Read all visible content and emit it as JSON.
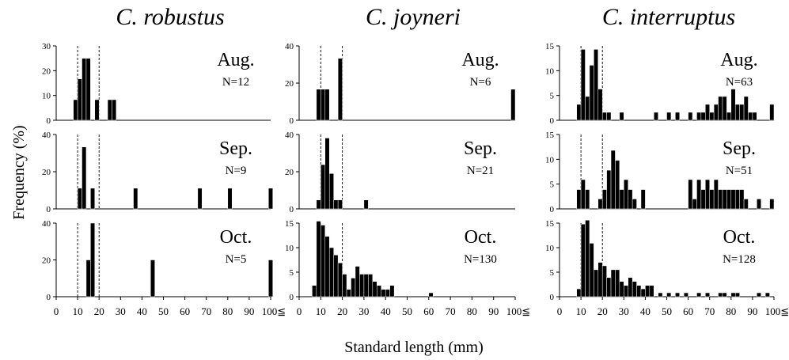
{
  "figure": {
    "ylabel": "Frequency (%)",
    "xlabel": "Standard length (mm)",
    "x_ticks": [
      "0",
      "10",
      "20",
      "30",
      "40",
      "50",
      "60",
      "70",
      "80",
      "90",
      "100≦"
    ],
    "species": [
      "C. robustus",
      "C. joyneri",
      "C. interruptus"
    ],
    "months": [
      "Aug.",
      "Sep.",
      "Oct."
    ]
  },
  "chart_data": [
    {
      "type": "bar",
      "species": "C. robustus",
      "month": "Aug.",
      "n_label": "N=12",
      "ylim": [
        0,
        30
      ],
      "yticks": [
        "0",
        "10",
        "20",
        "30"
      ],
      "xlim": [
        0,
        100
      ],
      "x": [
        9,
        11,
        13,
        15,
        19,
        25,
        27
      ],
      "values": [
        8.3,
        16.7,
        25,
        25,
        8.3,
        8.3,
        8.3
      ]
    },
    {
      "type": "bar",
      "species": "C. robustus",
      "month": "Sep.",
      "n_label": "N=9",
      "ylim": [
        0,
        40
      ],
      "yticks": [
        "0",
        "20",
        "40"
      ],
      "xlim": [
        0,
        100
      ],
      "x": [
        11,
        13,
        17,
        37,
        67,
        81,
        100
      ],
      "values": [
        11.1,
        33.3,
        11.1,
        11.1,
        11.1,
        11.1,
        11.1
      ]
    },
    {
      "type": "bar",
      "species": "C. robustus",
      "month": "Oct.",
      "n_label": "N=5",
      "ylim": [
        0,
        40
      ],
      "yticks": [
        "0",
        "20",
        "40"
      ],
      "xlim": [
        0,
        100
      ],
      "x": [
        15,
        17,
        45,
        100
      ],
      "values": [
        20,
        40,
        20,
        20
      ]
    },
    {
      "type": "bar",
      "species": "C. joyneri",
      "month": "Aug.",
      "n_label": "N=6",
      "ylim": [
        0,
        40
      ],
      "yticks": [
        "0",
        "20",
        "40"
      ],
      "xlim": [
        0,
        100
      ],
      "x": [
        9,
        11,
        13,
        19,
        99
      ],
      "values": [
        16.7,
        16.7,
        16.7,
        33.3,
        16.7
      ]
    },
    {
      "type": "bar",
      "species": "C. joyneri",
      "month": "Sep.",
      "n_label": "N=21",
      "ylim": [
        0,
        40
      ],
      "yticks": [
        "0",
        "20",
        "40"
      ],
      "xlim": [
        0,
        100
      ],
      "x": [
        9,
        11,
        13,
        15,
        17,
        19,
        31
      ],
      "values": [
        4.8,
        23.8,
        38.1,
        19,
        4.8,
        4.8,
        4.8
      ]
    },
    {
      "type": "bar",
      "species": "C. joyneri",
      "month": "Oct.",
      "n_label": "N=130",
      "ylim": [
        0,
        15
      ],
      "yticks": [
        "0",
        "5",
        "10",
        "15"
      ],
      "xlim": [
        0,
        100
      ],
      "x": [
        7,
        9,
        11,
        13,
        15,
        17,
        19,
        21,
        23,
        25,
        27,
        29,
        31,
        33,
        35,
        37,
        39,
        41,
        43,
        61
      ],
      "values": [
        2.3,
        15.4,
        14.6,
        12.3,
        10,
        8.5,
        6.9,
        4.6,
        1.5,
        3.8,
        6.2,
        4.6,
        4.6,
        4.6,
        3.1,
        2.3,
        1.5,
        1.5,
        2.3,
        0.8
      ]
    },
    {
      "type": "bar",
      "species": "C. interruptus",
      "month": "Aug.",
      "n_label": "N=63",
      "ylim": [
        0,
        15
      ],
      "yticks": [
        "0",
        "5",
        "10",
        "15"
      ],
      "xlim": [
        0,
        100
      ],
      "x": [
        9,
        11,
        13,
        15,
        17,
        19,
        21,
        23,
        29,
        45,
        51,
        55,
        61,
        65,
        67,
        69,
        71,
        73,
        75,
        77,
        79,
        81,
        83,
        85,
        87,
        89,
        91,
        99
      ],
      "values": [
        3.2,
        14.3,
        4.8,
        11.1,
        14.3,
        6.3,
        1.6,
        1.6,
        1.6,
        1.6,
        1.6,
        1.6,
        1.6,
        1.6,
        1.6,
        3.2,
        1.6,
        3.2,
        4.8,
        4.8,
        1.6,
        6.3,
        3.2,
        3.2,
        4.8,
        1.6,
        1.6,
        3.2
      ]
    },
    {
      "type": "bar",
      "species": "C. interruptus",
      "month": "Sep.",
      "n_label": "N=51",
      "ylim": [
        0,
        15
      ],
      "yticks": [
        "0",
        "5",
        "10",
        "15"
      ],
      "xlim": [
        0,
        100
      ],
      "x": [
        9,
        11,
        13,
        19,
        21,
        23,
        25,
        27,
        29,
        31,
        33,
        35,
        39,
        61,
        63,
        65,
        67,
        69,
        71,
        73,
        75,
        77,
        79,
        81,
        83,
        85,
        87,
        93,
        99
      ],
      "values": [
        3.9,
        5.9,
        3.9,
        2,
        3.9,
        7.8,
        11.8,
        9.8,
        3.9,
        5.9,
        3.9,
        2,
        3.9,
        5.9,
        2,
        5.9,
        3.9,
        5.9,
        3.9,
        5.9,
        3.9,
        3.9,
        3.9,
        3.9,
        3.9,
        3.9,
        2,
        2,
        2
      ]
    },
    {
      "type": "bar",
      "species": "C. interruptus",
      "month": "Oct.",
      "n_label": "N=128",
      "ylim": [
        0,
        15
      ],
      "yticks": [
        "0",
        "5",
        "10",
        "15"
      ],
      "xlim": [
        0,
        100
      ],
      "x": [
        9,
        11,
        13,
        15,
        17,
        19,
        21,
        23,
        25,
        27,
        29,
        31,
        33,
        35,
        37,
        39,
        41,
        43,
        47,
        51,
        55,
        59,
        65,
        69,
        75,
        77,
        81,
        83,
        93,
        97
      ],
      "values": [
        1.6,
        14.8,
        15.6,
        10.9,
        5.5,
        7,
        6.3,
        3.9,
        5.5,
        5.5,
        3.1,
        2.3,
        3.9,
        3.1,
        2.3,
        1.6,
        2.3,
        2.3,
        0.8,
        0.8,
        0.8,
        0.8,
        0.8,
        0.8,
        0.8,
        0.8,
        0.8,
        0.8,
        0.8,
        0.8
      ]
    }
  ]
}
